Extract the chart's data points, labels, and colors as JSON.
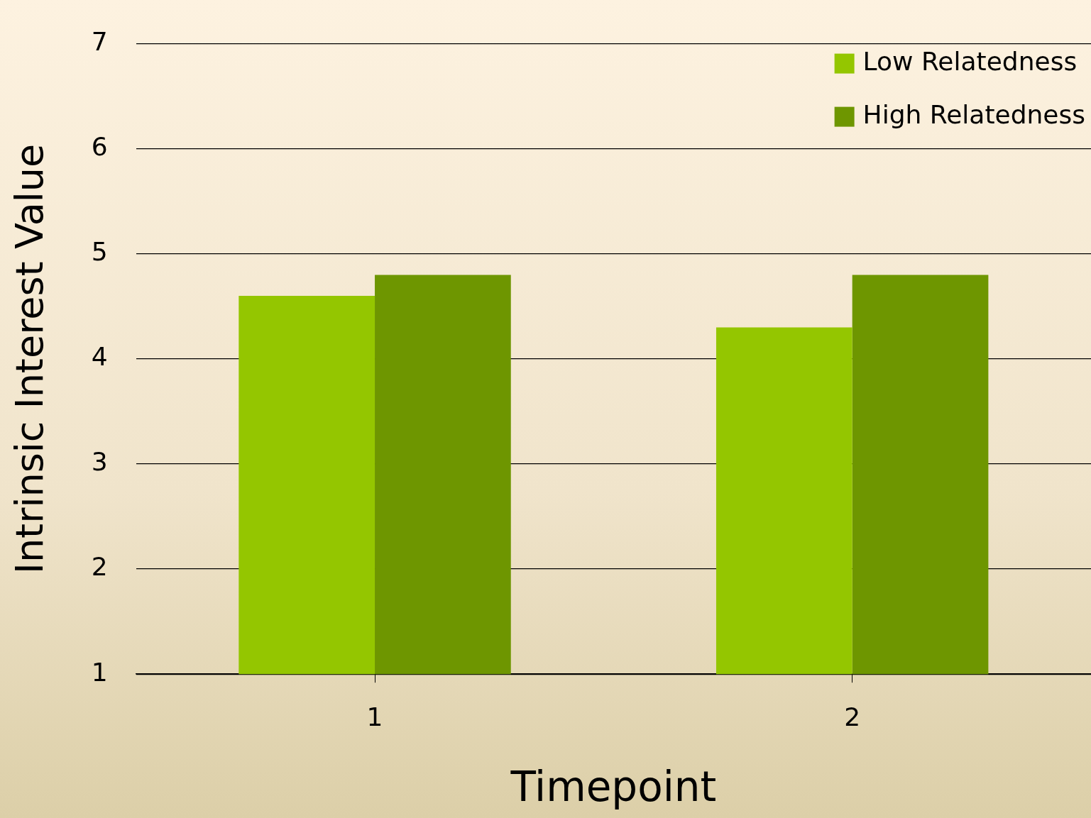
{
  "chart_data": {
    "type": "bar",
    "xlabel": "Timepoint",
    "ylabel": "Intrinsic Interest Value",
    "categories": [
      "1",
      "2"
    ],
    "series": [
      {
        "name": "Low Relatedness",
        "color": "#94c600",
        "values": [
          4.6,
          4.3
        ]
      },
      {
        "name": "High Relatedness",
        "color": "#6e9600",
        "values": [
          4.8,
          4.8
        ]
      }
    ],
    "ylim": [
      1,
      7
    ],
    "yticks": [
      1,
      2,
      3,
      4,
      5,
      6,
      7
    ],
    "grid": "y",
    "legend": "top right"
  }
}
